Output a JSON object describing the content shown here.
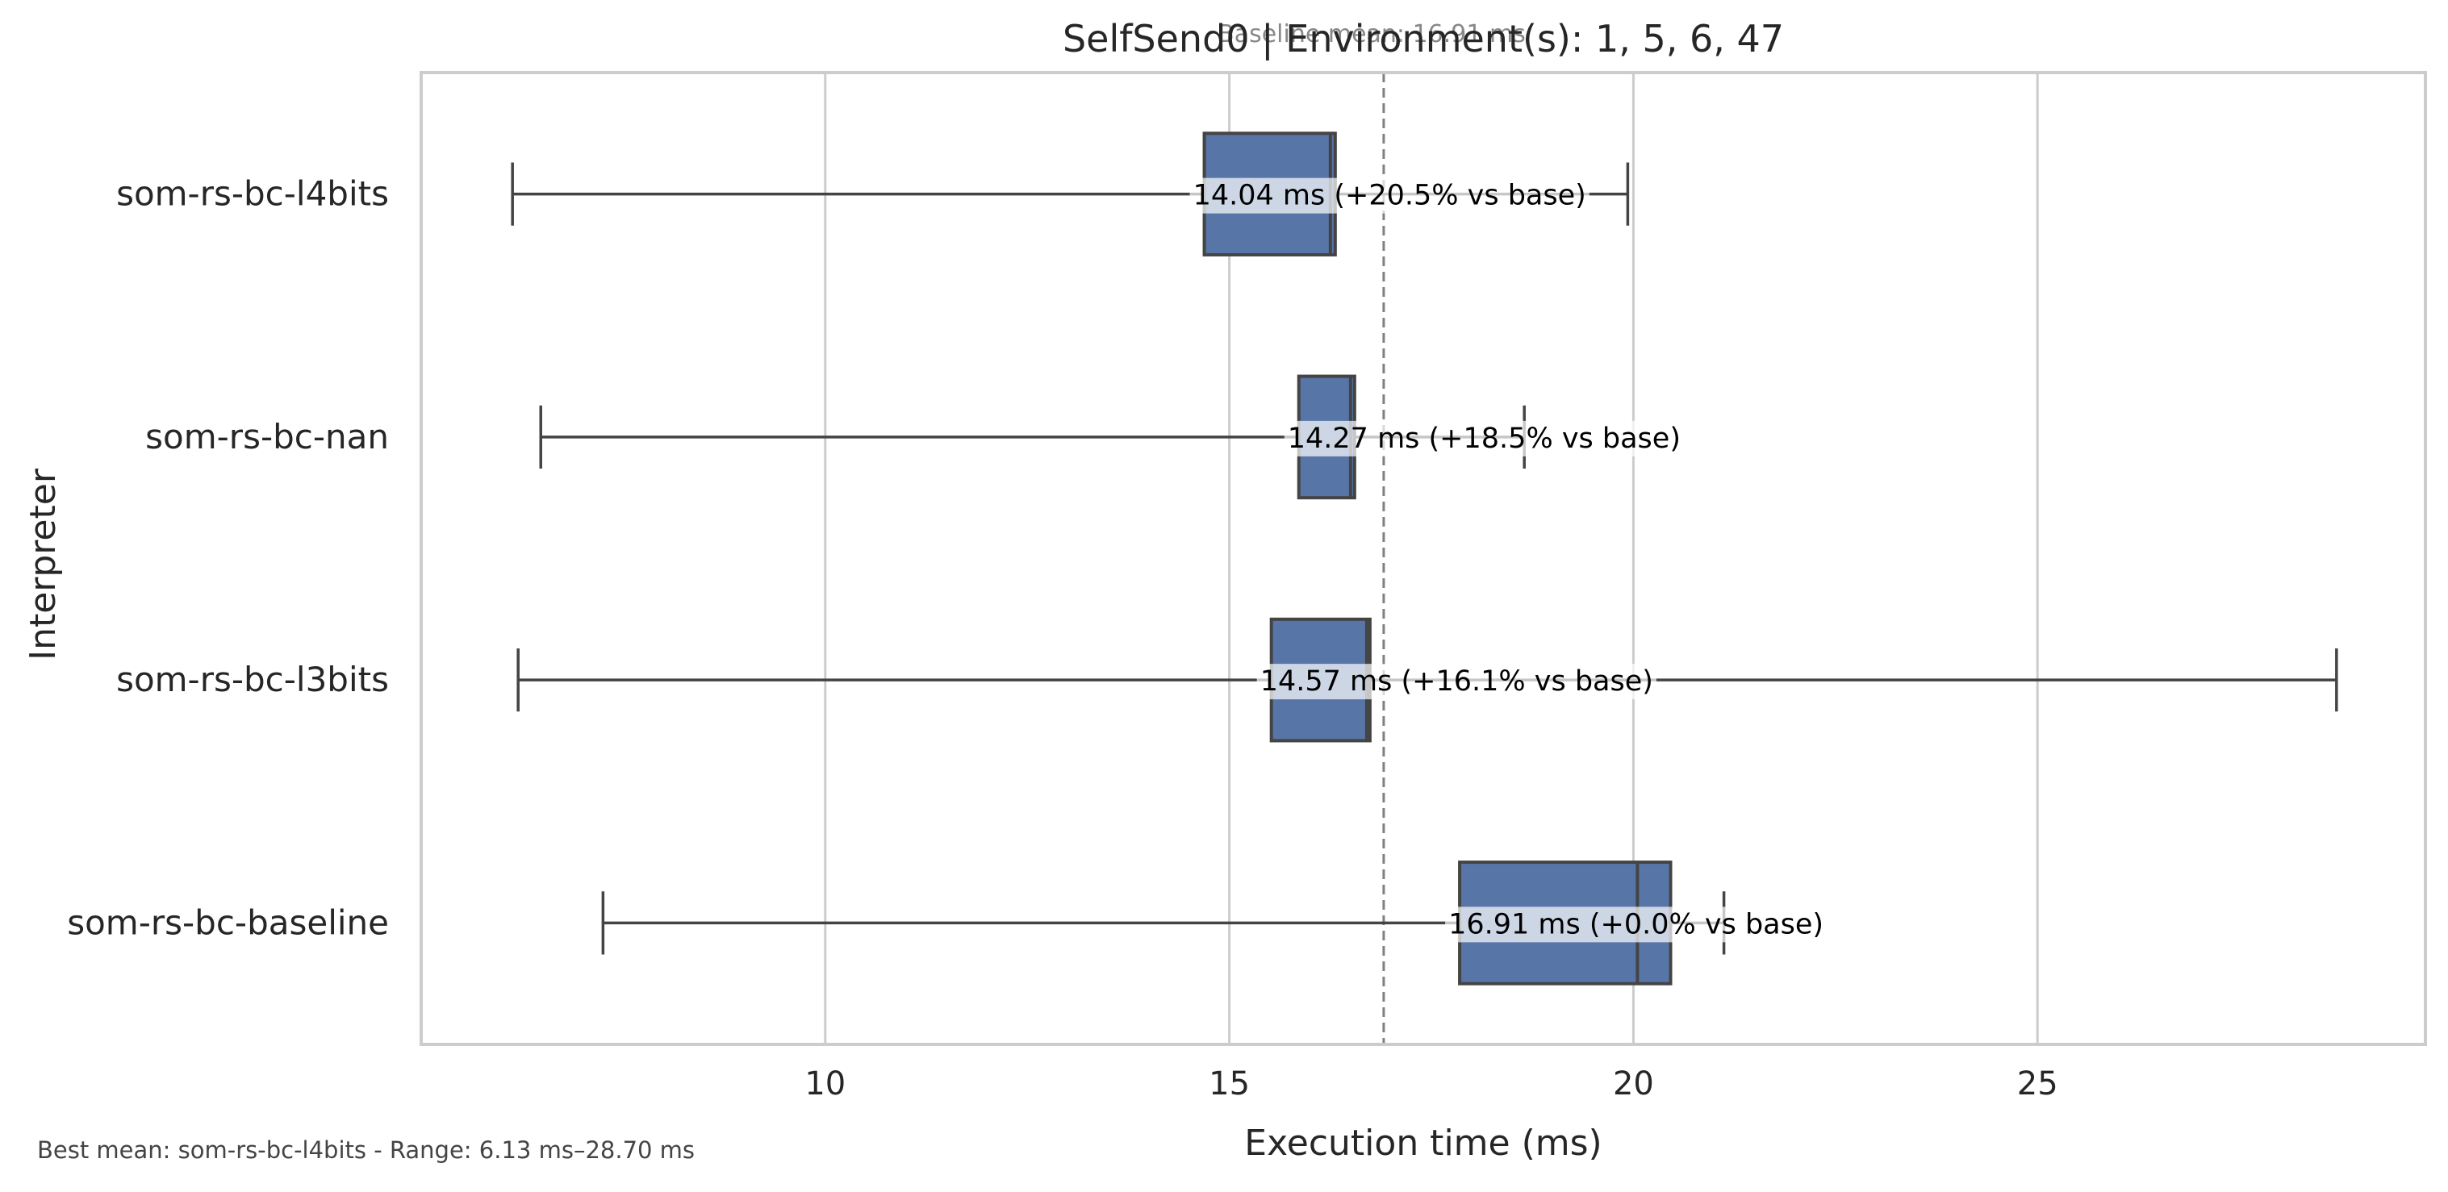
{
  "chart_data": {
    "type": "box",
    "title": "SelfSend0 | Environment(s): 1, 5, 6, 47",
    "baseline_note": "Baseline mean: 16.91 ms",
    "xlabel": "Execution time (ms)",
    "ylabel": "Interpreter",
    "xlim": [
      5,
      29.8
    ],
    "xticks": [
      10,
      15,
      20,
      25
    ],
    "grid": true,
    "orientation": "horizontal",
    "baseline_mean": 16.91,
    "box_color": "#5875a8",
    "edge_color": "#444444",
    "grid_color": "#cccccc",
    "baseline_line_color": "#808080",
    "series": [
      {
        "name": "som-rs-bc-l4bits",
        "whisker_low": 6.13,
        "q1": 14.69,
        "median": 16.25,
        "q3": 16.31,
        "whisker_high": 19.93,
        "label": "14.04 ms  (+20.5% vs base)"
      },
      {
        "name": "som-rs-bc-nan",
        "whisker_low": 6.48,
        "q1": 15.86,
        "median": 16.5,
        "q3": 16.55,
        "whisker_high": 18.65,
        "label": "14.27 ms  (+18.5% vs base)"
      },
      {
        "name": "som-rs-bc-l3bits",
        "whisker_low": 6.2,
        "q1": 15.52,
        "median": 16.7,
        "q3": 16.74,
        "whisker_high": 28.7,
        "label": "14.57 ms  (+16.1% vs base)"
      },
      {
        "name": "som-rs-bc-baseline",
        "whisker_low": 7.25,
        "q1": 17.85,
        "median": 20.05,
        "q3": 20.46,
        "whisker_high": 21.12,
        "label": "16.91 ms  (+0.0% vs base)"
      }
    ],
    "footnote": "Best mean: som-rs-bc-l4bits - Range: 6.13 ms–28.70 ms"
  }
}
